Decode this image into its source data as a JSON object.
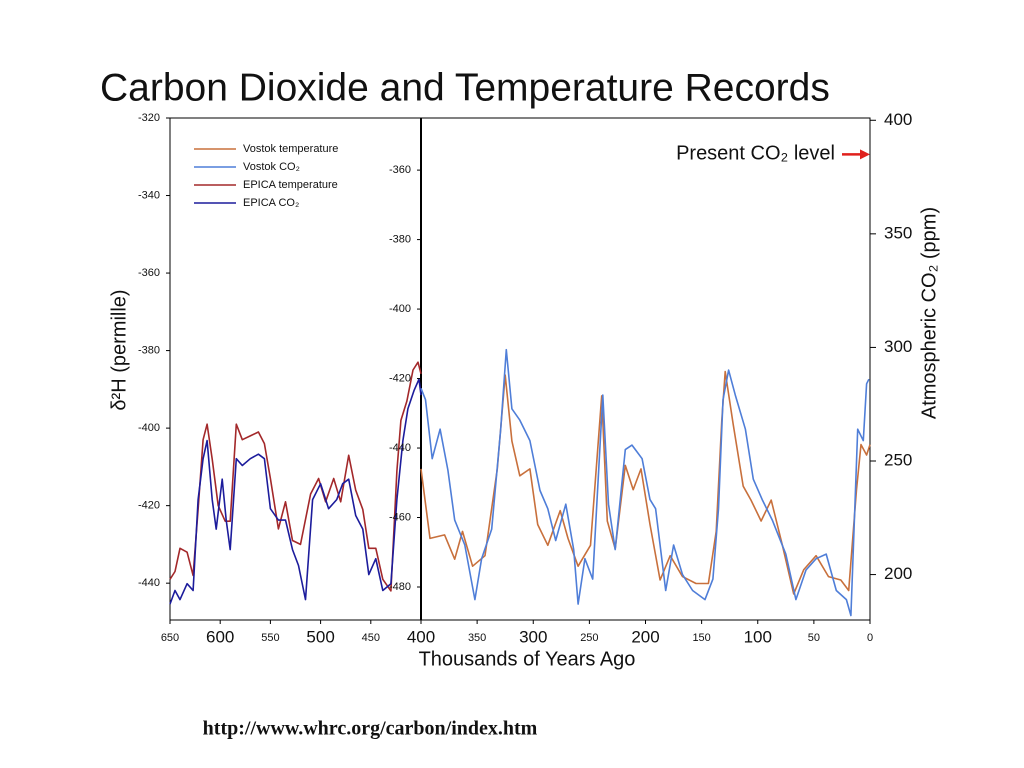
{
  "title": "Carbon Dioxide and Temperature Records",
  "footer": "http://www.whrc.org/carbon/index.htm",
  "chart_data": [
    {
      "type": "line",
      "ylabel": "δ²H (permille)",
      "xlim": [
        650,
        400
      ],
      "xticks": [
        650,
        600,
        550,
        500,
        450
      ],
      "ylim": [
        -449.5,
        -320
      ],
      "yticks": [
        -320,
        -340,
        -360,
        -380,
        -400,
        -420,
        -440
      ],
      "y2lim": [
        180,
        401
      ],
      "legend": "upper left",
      "series": [
        {
          "name": "EPICA temperature",
          "color": "#a3282a",
          "x": [
            650,
            645,
            640,
            633,
            627,
            622,
            617,
            613,
            608,
            602,
            595,
            590,
            584,
            578,
            570,
            562,
            556,
            550,
            542,
            535,
            528,
            520,
            510,
            502,
            495,
            487,
            480,
            472,
            465,
            458,
            452,
            445,
            438,
            430,
            424,
            420,
            414,
            408,
            403,
            400
          ],
          "values": [
            -439,
            -437,
            -431,
            -432,
            -438,
            -421,
            -403,
            -399,
            -408,
            -420,
            -424,
            -424,
            -399,
            -403,
            -402,
            -401,
            -404,
            -413,
            -426,
            -419,
            -429,
            -430,
            -417,
            -413,
            -419,
            -413,
            -419,
            -407,
            -416,
            -421,
            -431,
            -431,
            -439,
            -442,
            -411,
            -398,
            -393,
            -385,
            -383,
            -386
          ]
        },
        {
          "name": "EPICA CO₂",
          "color": "#1c1c9c",
          "axis": "y2",
          "x": [
            650,
            645,
            640,
            633,
            627,
            622,
            617,
            613,
            608,
            604,
            598,
            594,
            590,
            584,
            578,
            570,
            562,
            556,
            550,
            542,
            535,
            528,
            522,
            515,
            508,
            500,
            492,
            484,
            478,
            472,
            465,
            458,
            452,
            445,
            438,
            430,
            424,
            418,
            413,
            407,
            402,
            400
          ],
          "values": [
            187,
            193,
            189,
            196,
            193,
            233,
            251,
            259,
            233,
            220,
            242,
            224,
            211,
            251,
            248,
            251,
            253,
            251,
            229,
            224,
            224,
            211,
            204,
            189,
            233,
            240,
            229,
            233,
            240,
            242,
            226,
            220,
            200,
            207,
            193,
            196,
            233,
            259,
            273,
            281,
            286,
            279
          ]
        }
      ]
    },
    {
      "type": "line",
      "xlabel": "Thousands of Years Ago",
      "y2label": "Atmospheric CO₂ (ppm)",
      "xlim": [
        400,
        0
      ],
      "xticks": [
        400,
        350,
        300,
        250,
        200,
        150,
        100,
        50,
        0
      ],
      "ylim": [
        -489.5,
        -345
      ],
      "yticks": [
        -360,
        -380,
        -400,
        -420,
        -440,
        -460,
        -480
      ],
      "y2lim": [
        180,
        401
      ],
      "y2ticks": [
        200,
        250,
        300,
        350,
        400
      ],
      "annotation": {
        "text": "Present CO₂ level",
        "value": 385,
        "axis": "y2",
        "color": "#e0201c"
      },
      "series": [
        {
          "name": "Vostok temperature",
          "color": "#c8703c",
          "x": [
            400,
            392,
            379,
            370,
            363,
            354,
            343,
            332,
            325,
            319,
            312,
            303,
            296,
            287,
            276,
            269,
            260,
            249,
            239,
            234,
            227,
            218,
            211,
            204,
            196,
            187,
            178,
            167,
            155,
            144,
            137,
            132,
            129,
            122,
            113,
            106,
            97,
            88,
            78,
            68,
            59,
            48,
            37,
            26,
            19,
            12,
            8,
            3,
            0
          ],
          "values": [
            -446,
            -466,
            -465,
            -472,
            -464,
            -474,
            -471,
            -446,
            -419,
            -438,
            -448,
            -446,
            -462,
            -468,
            -458,
            -466,
            -474,
            -468,
            -425,
            -461,
            -469,
            -445,
            -452,
            -446,
            -462,
            -478,
            -471,
            -477,
            -479,
            -479,
            -464,
            -432,
            -418,
            -433,
            -451,
            -455,
            -461,
            -455,
            -468,
            -482,
            -475,
            -471,
            -477,
            -478,
            -481,
            -452,
            -439,
            -442,
            -439
          ]
        },
        {
          "name": "Vostok CO₂",
          "color": "#4f7ed8",
          "axis": "y2",
          "x": [
            400,
            396,
            390,
            383,
            376,
            370,
            361,
            352,
            346,
            337,
            329,
            324,
            319,
            312,
            303,
            294,
            287,
            280,
            271,
            264,
            260,
            254,
            247,
            238,
            233,
            227,
            218,
            212,
            203,
            196,
            191,
            182,
            175,
            167,
            158,
            147,
            140,
            135,
            131,
            126,
            120,
            111,
            104,
            96,
            87,
            75,
            66,
            57,
            48,
            39,
            30,
            21,
            17,
            11,
            6,
            3,
            1
          ],
          "values": [
            282,
            277,
            251,
            264,
            246,
            224,
            213,
            189,
            207,
            220,
            264,
            299,
            273,
            268,
            259,
            237,
            229,
            215,
            231,
            211,
            187,
            207,
            198,
            279,
            231,
            211,
            255,
            257,
            251,
            233,
            229,
            193,
            213,
            200,
            193,
            189,
            198,
            229,
            277,
            290,
            279,
            264,
            242,
            233,
            224,
            209,
            189,
            202,
            207,
            209,
            193,
            189,
            182,
            264,
            259,
            284,
            286
          ]
        }
      ]
    }
  ]
}
